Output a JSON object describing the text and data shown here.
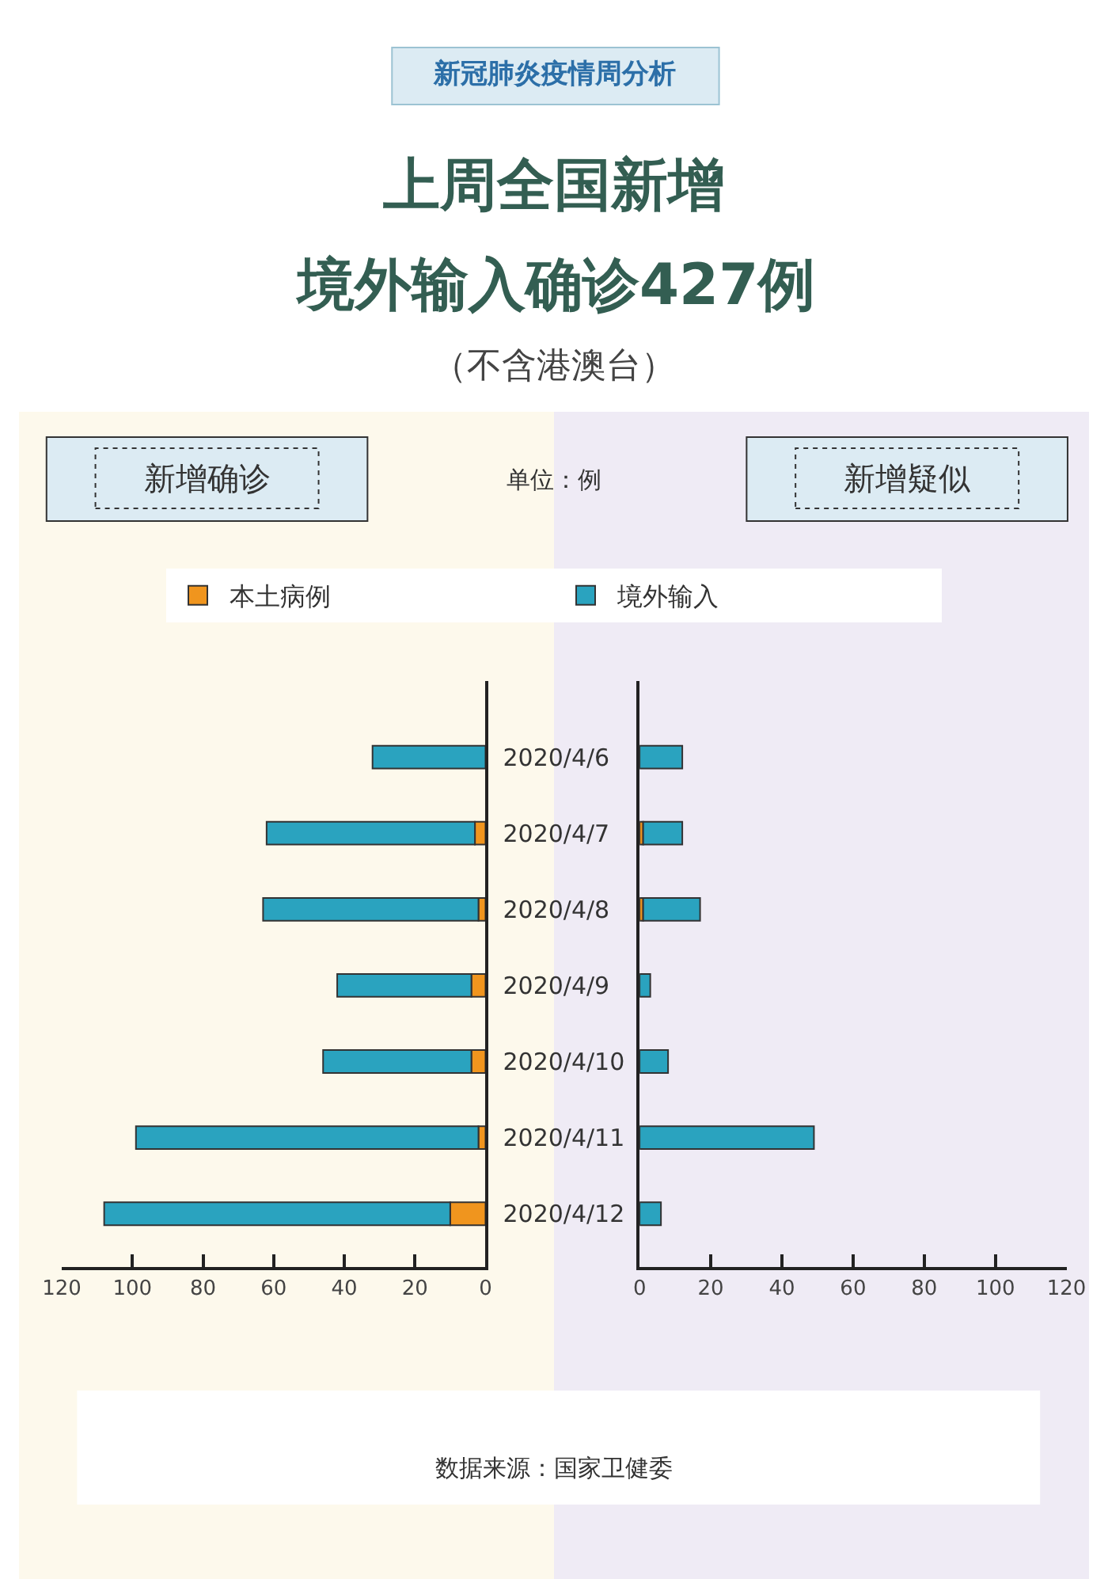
{
  "chart_data": [
    {
      "type": "bar",
      "orientation": "horizontal",
      "stacked": true,
      "title": "新增确诊",
      "categories": [
        "2020/4/6",
        "2020/4/7",
        "2020/4/8",
        "2020/4/9",
        "2020/4/10",
        "2020/4/11",
        "2020/4/12"
      ],
      "series": [
        {
          "name": "本土病例",
          "color": "#f0951e",
          "values": [
            0,
            3,
            2,
            4,
            4,
            2,
            10
          ]
        },
        {
          "name": "境外输入",
          "color": "#2aa3bf",
          "values": [
            32,
            59,
            61,
            38,
            42,
            97,
            98
          ]
        }
      ],
      "xlim": [
        120,
        0
      ],
      "xticks": [
        0,
        20,
        40,
        60,
        80,
        100,
        120
      ],
      "grid": false,
      "legend": "top",
      "annotations": [
        "新冠肺炎疫情周分析",
        "上周全国新增",
        "境外输入确诊427例",
        "（不含港澳台）",
        "单位：例",
        "数据来源：国家卫健委"
      ]
    },
    {
      "type": "bar",
      "orientation": "horizontal",
      "stacked": true,
      "title": "新增疑似",
      "categories": [
        "2020/4/6",
        "2020/4/7",
        "2020/4/8",
        "2020/4/9",
        "2020/4/10",
        "2020/4/11",
        "2020/4/12"
      ],
      "series": [
        {
          "color": "#f0951e",
          "values": [
            0,
            1,
            1,
            0,
            0,
            0,
            0
          ]
        },
        {
          "color": "#2aa3bf",
          "values": [
            12,
            11,
            16,
            3,
            8,
            49,
            6
          ]
        }
      ],
      "xlim": [
        0,
        120
      ],
      "xticks": [
        0,
        20,
        40,
        60,
        80,
        100,
        120
      ],
      "grid": false,
      "tick_labels": "x"
    }
  ]
}
